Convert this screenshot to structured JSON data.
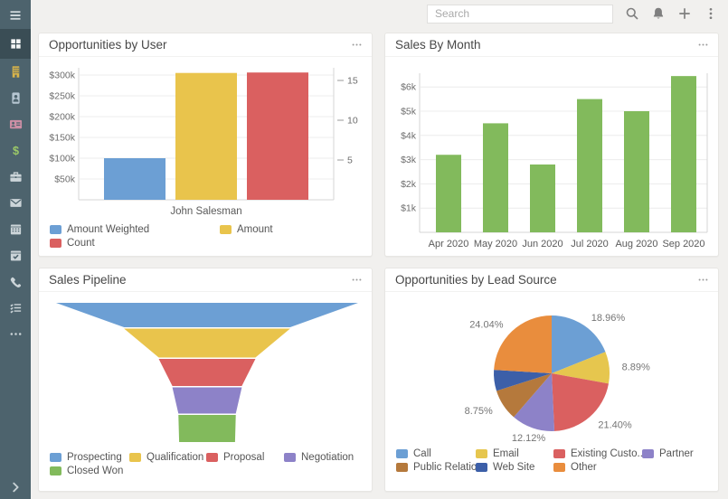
{
  "theme": {
    "page_bg": "#f1f0ee",
    "panel_bg": "#ffffff",
    "sidebar_bg": "#4d636d",
    "sidebar_active_bg": "#3a4d55",
    "blue": "#6c9fd4",
    "yellow": "#e9c44c",
    "red": "#da6060",
    "green": "#82ba5c",
    "purple": "#8d82c8",
    "orange": "#e98d3d",
    "brown": "#b5793c",
    "dark_blue": "#3c5fa8"
  },
  "topbar": {
    "search_placeholder": "Search",
    "buttons": [
      {
        "name": "search",
        "icon": "search-icon"
      },
      {
        "name": "notifications",
        "icon": "bell-icon"
      },
      {
        "name": "quick-create",
        "icon": "plus-icon"
      },
      {
        "name": "menu",
        "icon": "kebab-vertical-icon"
      }
    ]
  },
  "sidebar": {
    "items": [
      {
        "name": "dashboard",
        "icon": "grid-icon",
        "color": "#f3f6f6",
        "active": true
      },
      {
        "name": "accounts",
        "icon": "building-icon",
        "color": "#d9b44a",
        "active": false
      },
      {
        "name": "contacts",
        "icon": "person-badge-icon",
        "color": "#b6c6d2",
        "active": false
      },
      {
        "name": "leads",
        "icon": "id-card-icon",
        "color": "#cc8fa5",
        "active": false
      },
      {
        "name": "opportunities",
        "icon": "dollar-icon",
        "color": "#9cc968",
        "active": false
      },
      {
        "name": "cases",
        "icon": "briefcase-icon",
        "color": "#ccd5d9",
        "active": false
      },
      {
        "name": "emails",
        "icon": "envelope-icon",
        "color": "#ccd5d9",
        "active": false
      },
      {
        "name": "calendar",
        "icon": "calendar-icon",
        "color": "#ccd5d9",
        "active": false
      },
      {
        "name": "tasks",
        "icon": "calendar-check-icon",
        "color": "#ccd5d9",
        "active": false
      },
      {
        "name": "calls",
        "icon": "phone-icon",
        "color": "#ccd5d9",
        "active": false
      },
      {
        "name": "activities",
        "icon": "list-check-icon",
        "color": "#ccd5d9",
        "active": false
      },
      {
        "name": "more",
        "icon": "ellipsis-icon",
        "color": "#ccd5d9",
        "active": false
      }
    ]
  },
  "panels": [
    {
      "title": "Opportunities by User"
    },
    {
      "title": "Sales By Month"
    },
    {
      "title": "Sales Pipeline"
    },
    {
      "title": "Opportunities by Lead Source"
    }
  ],
  "chart_data": [
    {
      "type": "bar",
      "title": "Opportunities by User",
      "categories": [
        "John Salesman"
      ],
      "series": [
        {
          "name": "Amount Weighted",
          "color": "#6c9fd4",
          "axis": "left",
          "values": [
            100000
          ]
        },
        {
          "name": "Amount",
          "color": "#e9c44c",
          "axis": "left",
          "values": [
            305000
          ]
        },
        {
          "name": "Count",
          "color": "#da6060",
          "axis": "right",
          "values": [
            16
          ]
        }
      ],
      "left_axis": {
        "tick_labels": [
          "$50k",
          "$100k",
          "$150k",
          "$200k",
          "$250k",
          "$300k"
        ],
        "tick_values": [
          50000,
          100000,
          150000,
          200000,
          250000,
          300000
        ],
        "max": 325000
      },
      "right_axis": {
        "tick_values": [
          5,
          10,
          15
        ],
        "max": 17
      },
      "grid": true,
      "legend_position": "bottom"
    },
    {
      "type": "bar",
      "title": "Sales By Month",
      "categories": [
        "Apr 2020",
        "May 2020",
        "Jun 2020",
        "Jul 2020",
        "Aug 2020",
        "Sep 2020"
      ],
      "series": [
        {
          "name": "Sales",
          "color": "#82ba5c",
          "axis": "left",
          "values": [
            3200,
            4500,
            2800,
            5500,
            5000,
            6450
          ]
        }
      ],
      "left_axis": {
        "tick_labels": [
          "$1k",
          "$2k",
          "$3k",
          "$4k",
          "$5k",
          "$6k"
        ],
        "tick_values": [
          1000,
          2000,
          3000,
          4000,
          5000,
          6000
        ],
        "max": 6700
      },
      "grid": true,
      "legend_position": "none"
    },
    {
      "type": "funnel",
      "title": "Sales Pipeline",
      "stages": [
        {
          "name": "Prospecting",
          "color": "#6c9fd4",
          "width_pct": 100
        },
        {
          "name": "Qualification",
          "color": "#e9c44c",
          "width_pct": 55
        },
        {
          "name": "Proposal",
          "color": "#da6060",
          "width_pct": 32
        },
        {
          "name": "Negotiation",
          "color": "#8d82c8",
          "width_pct": 23
        },
        {
          "name": "Closed Won",
          "color": "#82ba5c",
          "width_pct": 19
        }
      ],
      "end_width_pct": 18.5,
      "legend_position": "bottom"
    },
    {
      "type": "pie",
      "title": "Opportunities by Lead Source",
      "slices": [
        {
          "name": "Call",
          "color": "#6c9fd4",
          "pct": 18.96,
          "label": "18.96%"
        },
        {
          "name": "Email",
          "color": "#e6c64e",
          "pct": 8.89,
          "label": "8.89%"
        },
        {
          "name": "Existing Custo...",
          "color": "#da6060",
          "pct": 21.4,
          "label": "21.40%"
        },
        {
          "name": "Partner",
          "color": "#8d82c8",
          "pct": 12.12,
          "label": "12.12%"
        },
        {
          "name": "Public Relations",
          "color": "#b5793c",
          "pct": 8.75,
          "label": "8.75%"
        },
        {
          "name": "Web Site",
          "color": "#3c5fa8",
          "pct": 5.84,
          "label": ""
        },
        {
          "name": "Other",
          "color": "#e98d3d",
          "pct": 24.04,
          "label": "24.04%"
        }
      ],
      "legend_position": "bottom"
    }
  ]
}
